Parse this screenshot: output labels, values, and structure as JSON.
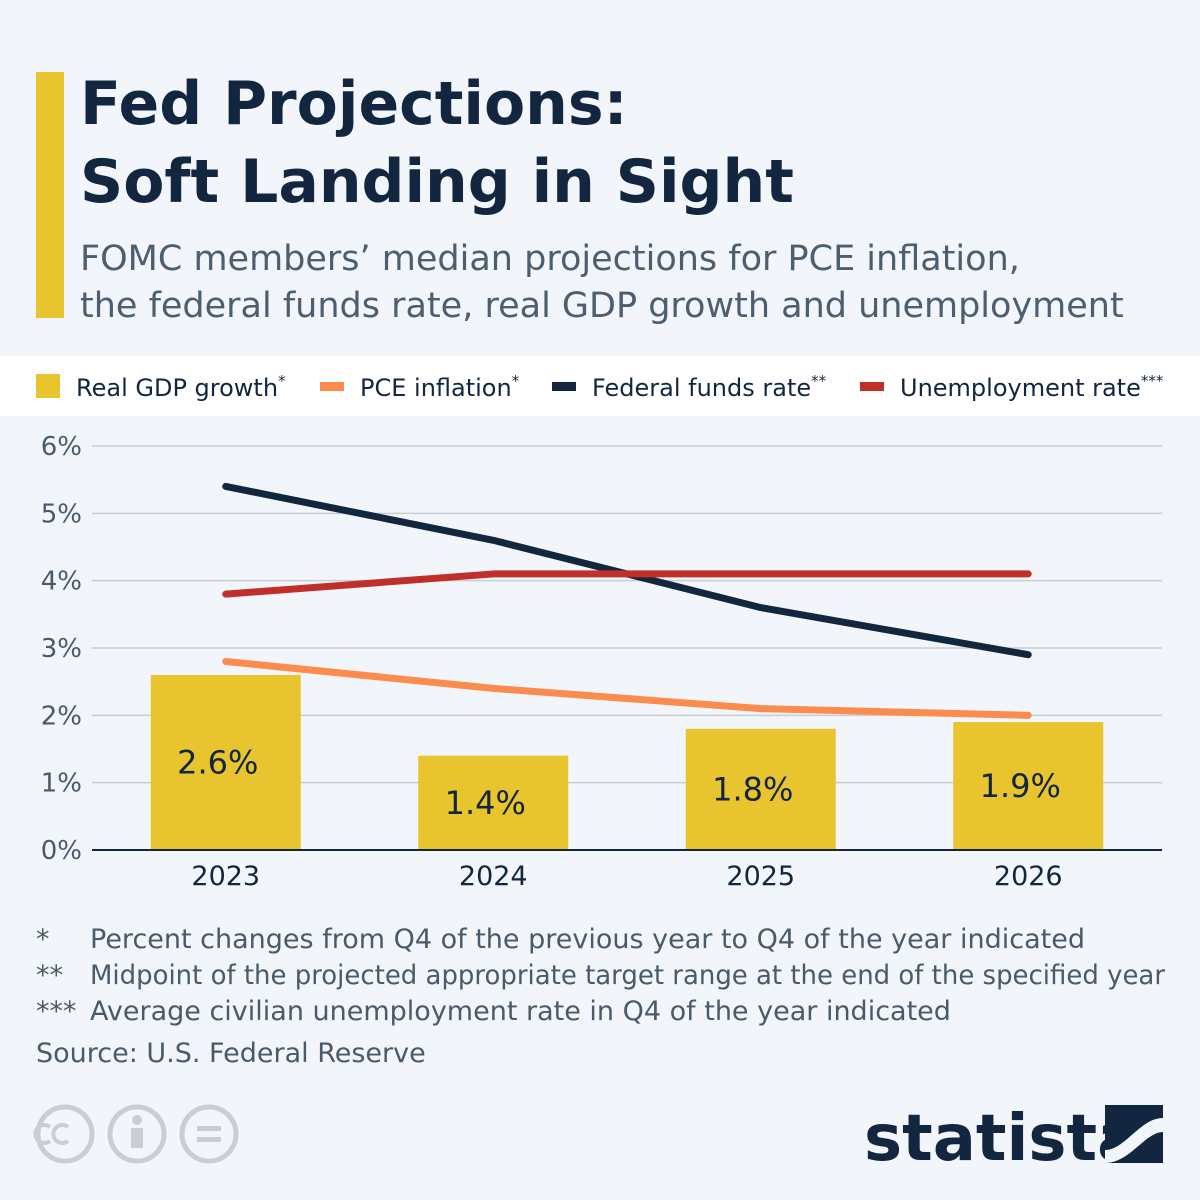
{
  "chart_data": {
    "type": "combo",
    "title": [
      "Fed Projections:",
      "Soft Landing in Sight"
    ],
    "subtitle": [
      "FOMC members’ median projections for PCE inflation,",
      "the federal funds rate, real GDP growth and unemployment"
    ],
    "categories": [
      "2023",
      "2024",
      "2025",
      "2026"
    ],
    "series": [
      {
        "name": "Real GDP growth",
        "marker": "*",
        "type": "bar",
        "color": "#e8c42e",
        "values": [
          2.6,
          1.4,
          1.8,
          1.9
        ],
        "value_labels": [
          "2.6%",
          "1.4%",
          "1.8%",
          "1.9%"
        ]
      },
      {
        "name": "PCE inflation",
        "marker": "*",
        "type": "line",
        "color": "#fb8c4e",
        "values": [
          2.8,
          2.4,
          2.1,
          2.0
        ]
      },
      {
        "name": "Federal funds rate",
        "marker": "**",
        "type": "line",
        "color": "#12263f",
        "values": [
          5.4,
          4.6,
          3.6,
          2.9
        ]
      },
      {
        "name": "Unemployment rate",
        "marker": "***",
        "type": "line",
        "color": "#c0302a",
        "values": [
          3.8,
          4.1,
          4.1,
          4.1
        ]
      }
    ],
    "ylim": [
      0,
      6
    ],
    "yticks": [
      {
        "value": 0,
        "label": "0%"
      },
      {
        "value": 1,
        "label": "1%"
      },
      {
        "value": 2,
        "label": "2%"
      },
      {
        "value": 3,
        "label": "3%"
      },
      {
        "value": 4,
        "label": "4%"
      },
      {
        "value": 5,
        "label": "5%"
      },
      {
        "value": 6,
        "label": "6%"
      }
    ],
    "grid": true,
    "footnotes": [
      {
        "marker": "*",
        "text": "Percent changes from Q4 of the previous year to Q4 of the year indicated"
      },
      {
        "marker": "**",
        "text": "Midpoint of the projected appropriate target range at the end of the specified year"
      },
      {
        "marker": "***",
        "text": "Average civilian unemployment rate in Q4 of the year indicated"
      }
    ],
    "source": "Source: U.S. Federal Reserve",
    "brand": "statista"
  }
}
